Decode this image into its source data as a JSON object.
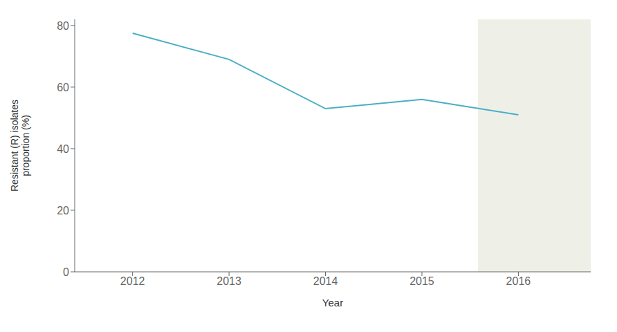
{
  "chart_data": {
    "type": "line",
    "x": [
      2012,
      2013,
      2014,
      2015,
      2016
    ],
    "values": [
      77.5,
      69.0,
      53.0,
      56.0,
      51.0
    ],
    "color": "#4aafc5",
    "xlabel": "Year",
    "ylabel": "Resistant (R) isolates\nproportion (%)",
    "xlim": [
      2011.4,
      2016.75
    ],
    "ylim": [
      0,
      82
    ],
    "xticks": [
      2012,
      2013,
      2014,
      2015,
      2016
    ],
    "yticks": [
      0,
      20,
      40,
      60,
      80
    ],
    "grid": false,
    "shaded_region": {
      "x": [
        2015.58,
        2016.75
      ],
      "color": "#eef0e8"
    }
  }
}
